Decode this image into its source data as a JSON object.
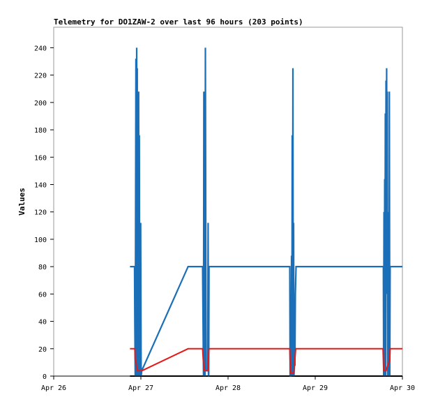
{
  "chart_data": {
    "type": "line",
    "title": "Telemetry for DO1ZAW-2 over last 96 hours (203 points)",
    "xlabel": "",
    "ylabel": "Values",
    "x_range": [
      "Apr 26 00:00",
      "Apr 30 00:00"
    ],
    "x_ticks": [
      "Apr 26",
      "Apr 27",
      "Apr 28",
      "Apr 29",
      "Apr 30"
    ],
    "ylim": [
      0,
      255
    ],
    "y_ticks": [
      0,
      20,
      40,
      60,
      80,
      100,
      120,
      140,
      160,
      180,
      200,
      220,
      240
    ],
    "grid": false,
    "series": [
      {
        "color": "#1a6fb8",
        "points": [
          [
            "Apr 26 21:00",
            80
          ],
          [
            "Apr 26 22:15",
            80
          ],
          [
            "Apr 26 22:20",
            40
          ],
          [
            "Apr 26 22:27",
            0
          ],
          [
            "Apr 26 22:38",
            232
          ],
          [
            "Apr 26 22:45",
            0
          ],
          [
            "Apr 26 22:51",
            240
          ],
          [
            "Apr 26 22:57",
            0
          ],
          [
            "Apr 26 23:00",
            225
          ],
          [
            "Apr 26 23:06",
            0
          ],
          [
            "Apr 26 23:12",
            104
          ],
          [
            "Apr 26 23:18",
            0
          ],
          [
            "Apr 26 23:23",
            208
          ],
          [
            "Apr 26 23:29",
            0
          ],
          [
            "Apr 26 23:35",
            176
          ],
          [
            "Apr 26 23:41",
            0
          ],
          [
            "Apr 26 23:46",
            88
          ],
          [
            "Apr 26 23:51",
            0
          ],
          [
            "Apr 26 23:57",
            112
          ],
          [
            "Apr 27 00:05",
            0
          ],
          [
            "Apr 27 00:15",
            4
          ],
          [
            "Apr 27 13:00",
            80
          ],
          [
            "Apr 27 17:00",
            80
          ],
          [
            "Apr 27 17:14",
            0
          ],
          [
            "Apr 27 17:20",
            208
          ],
          [
            "Apr 27 17:27",
            40
          ],
          [
            "Apr 27 17:33",
            200
          ],
          [
            "Apr 27 17:40",
            0
          ],
          [
            "Apr 27 17:46",
            240
          ],
          [
            "Apr 27 17:52",
            96
          ],
          [
            "Apr 27 17:58",
            4
          ],
          [
            "Apr 27 18:25",
            4
          ],
          [
            "Apr 27 18:30",
            112
          ],
          [
            "Apr 27 18:36",
            0
          ],
          [
            "Apr 27 18:41",
            0
          ],
          [
            "Apr 27 18:46",
            80
          ],
          [
            "Apr 28 17:00",
            80
          ],
          [
            "Apr 28 17:05",
            0
          ],
          [
            "Apr 28 17:22",
            0
          ],
          [
            "Apr 28 17:28",
            88
          ],
          [
            "Apr 28 17:34",
            0
          ],
          [
            "Apr 28 17:40",
            176
          ],
          [
            "Apr 28 17:46",
            0
          ],
          [
            "Apr 28 17:51",
            225
          ],
          [
            "Apr 28 17:57",
            0
          ],
          [
            "Apr 28 18:03",
            112
          ],
          [
            "Apr 28 18:09",
            0
          ],
          [
            "Apr 28 18:15",
            8
          ],
          [
            "Apr 28 18:25",
            8
          ],
          [
            "Apr 28 18:32",
            60
          ],
          [
            "Apr 28 18:38",
            70
          ],
          [
            "Apr 28 18:43",
            80
          ],
          [
            "Apr 29 18:45",
            80
          ],
          [
            "Apr 29 18:50",
            0
          ],
          [
            "Apr 29 18:56",
            120
          ],
          [
            "Apr 29 19:01",
            0
          ],
          [
            "Apr 29 19:07",
            144
          ],
          [
            "Apr 29 19:12",
            40
          ],
          [
            "Apr 29 19:18",
            192
          ],
          [
            "Apr 29 19:23",
            0
          ],
          [
            "Apr 29 19:29",
            216
          ],
          [
            "Apr 29 19:34",
            100
          ],
          [
            "Apr 29 19:40",
            225
          ],
          [
            "Apr 29 19:46",
            60
          ],
          [
            "Apr 29 19:51",
            208
          ],
          [
            "Apr 29 19:57",
            0
          ],
          [
            "Apr 29 20:03",
            100
          ],
          [
            "Apr 29 20:08",
            0
          ],
          [
            "Apr 29 20:14",
            120
          ],
          [
            "Apr 29 20:20",
            40
          ],
          [
            "Apr 29 20:25",
            208
          ],
          [
            "Apr 29 20:31",
            0
          ],
          [
            "Apr 29 20:37",
            80
          ],
          [
            "Apr 30 00:00",
            80
          ]
        ]
      },
      {
        "color": "#e61919",
        "points": [
          [
            "Apr 26 21:00",
            20
          ],
          [
            "Apr 26 22:20",
            20
          ],
          [
            "Apr 26 22:25",
            12
          ],
          [
            "Apr 26 22:40",
            10
          ],
          [
            "Apr 26 23:00",
            4
          ],
          [
            "Apr 27 00:20",
            4
          ],
          [
            "Apr 27 13:00",
            20
          ],
          [
            "Apr 27 17:00",
            20
          ],
          [
            "Apr 27 17:10",
            12
          ],
          [
            "Apr 27 17:25",
            4
          ],
          [
            "Apr 27 18:25",
            4
          ],
          [
            "Apr 27 18:46",
            20
          ],
          [
            "Apr 28 17:00",
            20
          ],
          [
            "Apr 28 17:10",
            2
          ],
          [
            "Apr 28 18:05",
            2
          ],
          [
            "Apr 28 18:38",
            20
          ],
          [
            "Apr 29 18:40",
            20
          ],
          [
            "Apr 29 18:50",
            4
          ],
          [
            "Apr 29 19:30",
            4
          ],
          [
            "Apr 29 20:30",
            12
          ],
          [
            "Apr 29 20:37",
            20
          ],
          [
            "Apr 30 00:00",
            20
          ]
        ]
      },
      {
        "color": "#000000",
        "points": [
          [
            "Apr 26 21:00",
            0
          ],
          [
            "Apr 30 00:00",
            0
          ]
        ]
      }
    ]
  }
}
